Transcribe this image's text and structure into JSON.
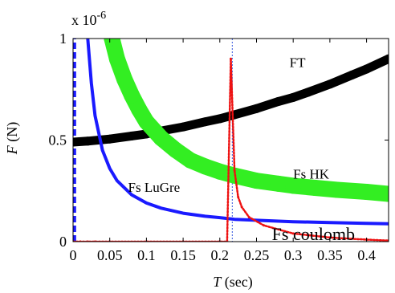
{
  "chart_data": {
    "type": "line",
    "title": "",
    "exponent_label": "x 10",
    "exponent_power": "-6",
    "xlabel": {
      "symbol": "T",
      "unit": "(sec)"
    },
    "ylabel": {
      "symbol": "F",
      "unit": "(N)"
    },
    "xlim": [
      0,
      0.43
    ],
    "ylim": [
      0,
      1
    ],
    "grid": false,
    "xticks": [
      0,
      0.05,
      0.1,
      0.15,
      0.2,
      0.25,
      0.3,
      0.35,
      0.4
    ],
    "xtick_labels": [
      "0",
      "0.05",
      "0.1",
      "0.15",
      "0.2",
      "0.25",
      "0.3",
      "0.35",
      "0.4"
    ],
    "yticks": [
      0,
      0.5,
      1
    ],
    "ytick_labels": [
      "0",
      "0.5",
      "1"
    ],
    "vline_x": 0.217,
    "series": [
      {
        "name": "FT",
        "color": "#000000",
        "style": "thick-markers",
        "x": [
          0,
          0.02,
          0.05,
          0.08,
          0.1,
          0.12,
          0.15,
          0.18,
          0.2,
          0.22,
          0.25,
          0.28,
          0.3,
          0.32,
          0.35,
          0.38,
          0.4,
          0.43
        ],
        "y": [
          0.49,
          0.495,
          0.505,
          0.52,
          0.53,
          0.545,
          0.565,
          0.59,
          0.605,
          0.625,
          0.655,
          0.69,
          0.71,
          0.735,
          0.775,
          0.82,
          0.85,
          0.9
        ]
      },
      {
        "name": "Fs HK",
        "color": "#33ee22",
        "style": "thick-markers",
        "x": [
          0.053,
          0.06,
          0.07,
          0.08,
          0.09,
          0.1,
          0.12,
          0.14,
          0.16,
          0.18,
          0.2,
          0.22,
          0.25,
          0.28,
          0.3,
          0.33,
          0.36,
          0.4,
          0.43
        ],
        "y": [
          1.0,
          0.9,
          0.8,
          0.72,
          0.65,
          0.59,
          0.51,
          0.45,
          0.4,
          0.37,
          0.345,
          0.325,
          0.3,
          0.285,
          0.275,
          0.265,
          0.255,
          0.245,
          0.235
        ]
      },
      {
        "name": "Fs LuGre",
        "color": "#1a1aff",
        "style": "line",
        "x": [
          0.02,
          0.025,
          0.03,
          0.04,
          0.05,
          0.06,
          0.08,
          0.1,
          0.12,
          0.15,
          0.18,
          0.2,
          0.22,
          0.25,
          0.3,
          0.35,
          0.4,
          0.43
        ],
        "y": [
          1.0,
          0.78,
          0.62,
          0.45,
          0.36,
          0.3,
          0.23,
          0.19,
          0.165,
          0.14,
          0.125,
          0.118,
          0.11,
          0.105,
          0.098,
          0.094,
          0.09,
          0.088
        ]
      },
      {
        "name": "Fs coulomb",
        "color": "#ee1111",
        "style": "dotted-markers",
        "x": [
          0,
          0.01,
          0.02,
          0.03,
          0.05,
          0.1,
          0.15,
          0.2,
          0.21,
          0.215,
          0.22,
          0.225,
          0.23,
          0.24,
          0.26,
          0.3,
          0.35,
          0.4,
          0.43
        ],
        "y": [
          0,
          0,
          0,
          0,
          0,
          0,
          0,
          0,
          0,
          0.9,
          0.35,
          0.22,
          0.17,
          0.12,
          0.08,
          0.04,
          0.02,
          0.01,
          0.005
        ]
      }
    ],
    "dashed_series": {
      "color": "#1a1aff",
      "x": [
        0.002,
        0.002
      ],
      "y": [
        0,
        1
      ]
    },
    "annotations": [
      {
        "text": "FT",
        "x": 0.295,
        "y": 0.86
      },
      {
        "text": "Fs HK",
        "x": 0.3,
        "y": 0.31
      },
      {
        "text": "Fs LuGre",
        "x": 0.075,
        "y": 0.245
      },
      {
        "text": "Fs coulomb",
        "x": 0.271,
        "y": 0.0
      }
    ]
  }
}
